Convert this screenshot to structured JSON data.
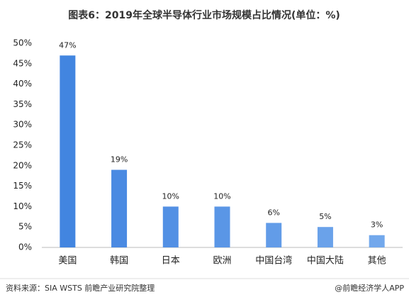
{
  "chart_data": {
    "type": "bar",
    "title": "图表6：2019年全球半导体行业市场规模占比情况(单位：%)",
    "categories": [
      "美国",
      "韩国",
      "日本",
      "欧洲",
      "中国台湾",
      "中国大陆",
      "其他"
    ],
    "values": [
      47,
      19,
      10,
      10,
      6,
      5,
      3
    ],
    "value_labels": [
      "47%",
      "19%",
      "10%",
      "10%",
      "6%",
      "5%",
      "3%"
    ],
    "colors": [
      "#4285e0",
      "#4a8ae2",
      "#5290e4",
      "#5a96e6",
      "#629ce8",
      "#6aa2ea",
      "#72a8ec"
    ],
    "ylim": [
      0,
      50
    ],
    "yticks": [
      {
        "value": 0,
        "label": "0%"
      },
      {
        "value": 5,
        "label": "5%"
      },
      {
        "value": 10,
        "label": "10%"
      },
      {
        "value": 15,
        "label": "15%"
      },
      {
        "value": 20,
        "label": "20%"
      },
      {
        "value": 25,
        "label": "25%"
      },
      {
        "value": 30,
        "label": "30%"
      },
      {
        "value": 35,
        "label": "35%"
      },
      {
        "value": 40,
        "label": "40%"
      },
      {
        "value": 45,
        "label": "45%"
      },
      {
        "value": 50,
        "label": "50%"
      }
    ],
    "source": "资料来源：SIA WSTS 前瞻产业研究院整理",
    "credit": "@前瞻经济学人APP"
  }
}
